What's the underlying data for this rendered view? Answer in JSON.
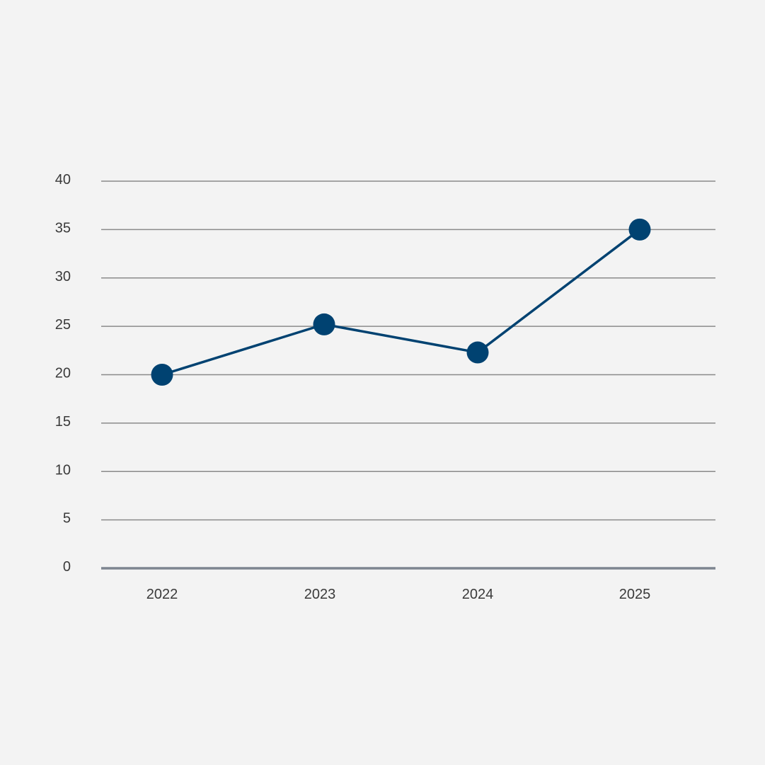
{
  "colors": {
    "background": "#f3f3f3",
    "series": "#004271",
    "grid": "#8a8a8a",
    "axis": "#7d8590",
    "text": "#3a3a3a"
  },
  "chart_data": {
    "type": "line",
    "title": "",
    "xlabel": "",
    "ylabel": "",
    "categories": [
      "2022",
      "2023",
      "2024",
      "2025"
    ],
    "series": [
      {
        "values": [
          20.0,
          25.2,
          22.3,
          35.0
        ],
        "color": "#004271",
        "marker": "circle"
      }
    ],
    "ylim": [
      0,
      40
    ],
    "yticks": [
      0,
      5,
      10,
      15,
      20,
      25,
      30,
      35,
      40
    ],
    "grid": true,
    "legend": "none"
  }
}
